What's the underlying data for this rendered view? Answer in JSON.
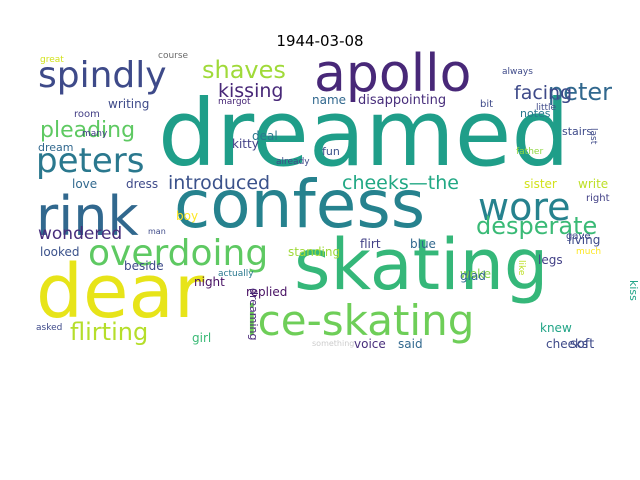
{
  "title": "1944-03-08",
  "words": [
    {
      "text": "dreamed",
      "color": "#1f9e89"
    },
    {
      "text": "confess",
      "color": "#26828e"
    },
    {
      "text": "skating",
      "color": "#35b779"
    },
    {
      "text": "dear",
      "color": "#e7e419"
    },
    {
      "text": "apollo",
      "color": "#482878"
    },
    {
      "text": "ice-skating",
      "color": "#6ece58"
    },
    {
      "text": "rink",
      "color": "#31688e"
    },
    {
      "text": "spindly",
      "color": "#3e4a89"
    },
    {
      "text": "overdoing",
      "color": "#5ec962"
    },
    {
      "text": "peters",
      "color": "#2a788e"
    },
    {
      "text": "wore",
      "color": "#26828e"
    },
    {
      "text": "desperate",
      "color": "#3aba76"
    },
    {
      "text": "pleading",
      "color": "#5ec962"
    },
    {
      "text": "flirting",
      "color": "#b5de2b"
    },
    {
      "text": "shaves",
      "color": "#a0da39"
    },
    {
      "text": "peter",
      "color": "#31688e"
    },
    {
      "text": "introduced",
      "color": "#3b528b"
    },
    {
      "text": "cheeks—the",
      "color": "#22a884"
    },
    {
      "text": "kissing",
      "color": "#482878"
    },
    {
      "text": "facing",
      "color": "#3e4a89"
    },
    {
      "text": "wondered",
      "color": "#472d7b"
    },
    {
      "text": "disappointing",
      "color": "#472d7b"
    },
    {
      "text": "name",
      "color": "#31688e"
    },
    {
      "text": "writing",
      "color": "#3e4a89"
    },
    {
      "text": "notes",
      "color": "#2a788e"
    },
    {
      "text": "stairs",
      "color": "#3e4a89"
    },
    {
      "text": "room",
      "color": "#433e85"
    },
    {
      "text": "dream",
      "color": "#31688e"
    },
    {
      "text": "deal",
      "color": "#2a788e"
    },
    {
      "text": "fun",
      "color": "#3b528b"
    },
    {
      "text": "kitty",
      "color": "#424086"
    },
    {
      "text": "love",
      "color": "#31688e"
    },
    {
      "text": "dress",
      "color": "#3e4a89"
    },
    {
      "text": "write",
      "color": "#bddf26"
    },
    {
      "text": "sister",
      "color": "#d2e21b"
    },
    {
      "text": "boy",
      "color": "#fde725"
    },
    {
      "text": "blue",
      "color": "#31688e"
    },
    {
      "text": "flirt",
      "color": "#424086"
    },
    {
      "text": "woke",
      "color": "#86d549"
    },
    {
      "text": "living",
      "color": "#3e4a89"
    },
    {
      "text": "legs",
      "color": "#424086"
    },
    {
      "text": "standing",
      "color": "#a0da39"
    },
    {
      "text": "looked",
      "color": "#3b528b"
    },
    {
      "text": "beside",
      "color": "#3e4a89"
    },
    {
      "text": "replied",
      "color": "#471063"
    },
    {
      "text": "glad",
      "color": "#31688e"
    },
    {
      "text": "night",
      "color": "#471063"
    },
    {
      "text": "girl",
      "color": "#3aba76"
    },
    {
      "text": "knew",
      "color": "#20a486"
    },
    {
      "text": "soft",
      "color": "#3e4a89"
    },
    {
      "text": "voice",
      "color": "#472d7b"
    },
    {
      "text": "said",
      "color": "#31688e"
    },
    {
      "text": "cheeks",
      "color": "#3e4a89"
    },
    {
      "text": "dreaming",
      "color": "#482878"
    },
    {
      "text": "kiss",
      "color": "#20a486"
    },
    {
      "text": "great",
      "color": "#d2e21b"
    },
    {
      "text": "course",
      "color": "#6b6b6b"
    },
    {
      "text": "always",
      "color": "#3e4a89"
    },
    {
      "text": "margot",
      "color": "#482878"
    },
    {
      "text": "many",
      "color": "#424086"
    },
    {
      "text": "bit",
      "color": "#3e4a89"
    },
    {
      "text": "little",
      "color": "#3e4a89"
    },
    {
      "text": "last",
      "color": "#3e4a89"
    },
    {
      "text": "father",
      "color": "#90d743"
    },
    {
      "text": "already",
      "color": "#3e4a89"
    },
    {
      "text": "right",
      "color": "#424086"
    },
    {
      "text": "gave",
      "color": "#3e4a89"
    },
    {
      "text": "much",
      "color": "#fde725"
    },
    {
      "text": "like",
      "color": "#bddf26"
    },
    {
      "text": "actually",
      "color": "#2a788e"
    },
    {
      "text": "man",
      "color": "#3e4a89"
    },
    {
      "text": "asked",
      "color": "#3e4a89"
    },
    {
      "text": "something",
      "color": "#cccccc"
    }
  ]
}
